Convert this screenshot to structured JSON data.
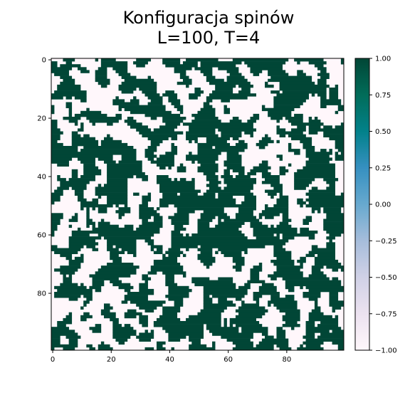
{
  "chart_data": {
    "type": "heatmap",
    "title_lines": [
      "Konfiguracja spinów",
      "L=100, T=4"
    ],
    "grid_size": 100,
    "x_ticks": [
      "0",
      "20",
      "40",
      "60",
      "80"
    ],
    "y_ticks": [
      "0",
      "20",
      "40",
      "60",
      "80"
    ],
    "colorbar": {
      "min": -1.0,
      "max": 1.0,
      "ticks": [
        "1.00",
        "0.75",
        "0.50",
        "0.25",
        "0.00",
        "−0.25",
        "−0.50",
        "−0.75",
        "−1.00"
      ],
      "colormap": "PuBuGn",
      "colors": [
        "#fff7fb",
        "#ece2f0",
        "#d0d1e6",
        "#a6bddb",
        "#67a9cf",
        "#3690c0",
        "#02818a",
        "#016c59",
        "#014636"
      ]
    },
    "cell_values": [
      -1,
      1
    ],
    "spin_up_color": "#014636",
    "spin_down_color": "#fff7fb"
  }
}
